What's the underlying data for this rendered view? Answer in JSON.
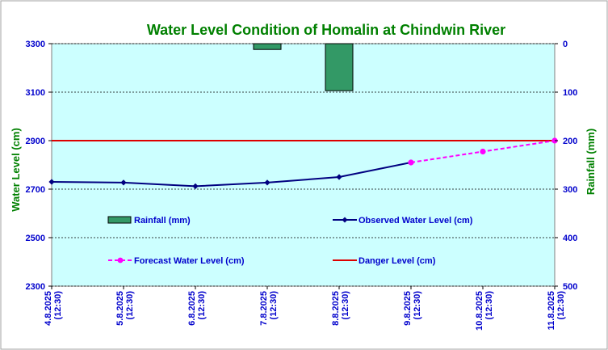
{
  "colors": {
    "plot_bg": "#ccffff",
    "frame": "#7f7f7f",
    "observed": "#000080",
    "forecast": "#ff00ff",
    "danger": "#dd0000",
    "rainfall_fill": "#339966",
    "rainfall_stroke": "#000000",
    "title": "#008000",
    "tick": "#0000cc"
  },
  "chart_data": {
    "type": "line",
    "title": "Water Level Condition of Homalin at Chindwin River",
    "ylabel": "Water Level (cm)",
    "y2label": "Rainfall (mm)",
    "categories": [
      "4.8.2025",
      "5.8.2025",
      "6.8.2025",
      "7.8.2025",
      "8.8.2025",
      "9.8.2025",
      "10.8.2025",
      "11.8.2025"
    ],
    "category_times": [
      "(12:30)",
      "(12:30)",
      "(12:30)",
      "(12:30)",
      "(12:30)",
      "(12:30)",
      "(12:30)",
      "(12:30)"
    ],
    "ylim": [
      2300,
      3300
    ],
    "yticks": [
      "2300",
      "2500",
      "2700",
      "2900",
      "3100",
      "3300"
    ],
    "y2lim": [
      500,
      0
    ],
    "y2ticks": [
      "0",
      "100",
      "200",
      "300",
      "400",
      "500"
    ],
    "grid": true,
    "series": [
      {
        "name": "Observed Water Level (cm)",
        "kind": "line",
        "axis": "left",
        "values": [
          2730,
          2727,
          2712,
          2727,
          2750,
          2810,
          null,
          null
        ]
      },
      {
        "name": "Forecast Water Level (cm)",
        "kind": "line-dashed",
        "axis": "left",
        "values": [
          null,
          null,
          null,
          null,
          null,
          2810,
          2855,
          2900
        ]
      },
      {
        "name": "Danger Level (cm)",
        "kind": "hline",
        "axis": "left",
        "value": 2900
      },
      {
        "name": "Rainfall (mm)",
        "kind": "bar",
        "axis": "right",
        "values": [
          0,
          0,
          0,
          12,
          97,
          0,
          0,
          0
        ]
      }
    ],
    "legend": {
      "placement": "inside-lower",
      "items": [
        "Rainfall (mm)",
        "Observed Water Level (cm)",
        "Forecast Water Level (cm)",
        "Danger Level (cm)"
      ]
    }
  }
}
